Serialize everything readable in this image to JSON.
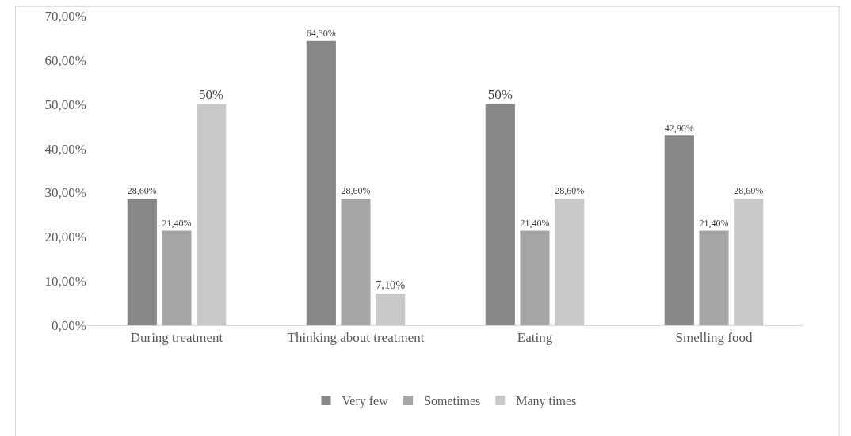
{
  "chart_data": {
    "type": "bar",
    "categories": [
      "During treatment",
      "Thinking about treatment",
      "Eating",
      "Smelling food"
    ],
    "series": [
      {
        "name": "Very few",
        "color": "#878787",
        "values": [
          28.6,
          64.3,
          50,
          42.9
        ],
        "value_labels": [
          "28,60%",
          "64,30%",
          "50%",
          "42,90%"
        ]
      },
      {
        "name": "Sometimes",
        "color": "#a5a5a5",
        "values": [
          21.4,
          28.6,
          21.4,
          21.4
        ],
        "value_labels": [
          "21,40%",
          "28,60%",
          "21,40%",
          "21,40%"
        ]
      },
      {
        "name": "Many times",
        "color": "#c9c9c9",
        "values": [
          50,
          7.1,
          28.6,
          28.6
        ],
        "value_labels": [
          "50%",
          "7,10%",
          "28,60%",
          "28,60%"
        ]
      }
    ],
    "ylim": [
      0,
      70
    ],
    "yticks": [
      {
        "value": 0,
        "label": "0,00%"
      },
      {
        "value": 10,
        "label": "10,00%"
      },
      {
        "value": 20,
        "label": "20,00%"
      },
      {
        "value": 30,
        "label": "30,00%"
      },
      {
        "value": 40,
        "label": "40,00%"
      },
      {
        "value": 50,
        "label": "50,00%"
      },
      {
        "value": 60,
        "label": "60,00%"
      },
      {
        "value": 70,
        "label": "70,00%"
      }
    ],
    "grid": false,
    "legend": "bottom"
  }
}
